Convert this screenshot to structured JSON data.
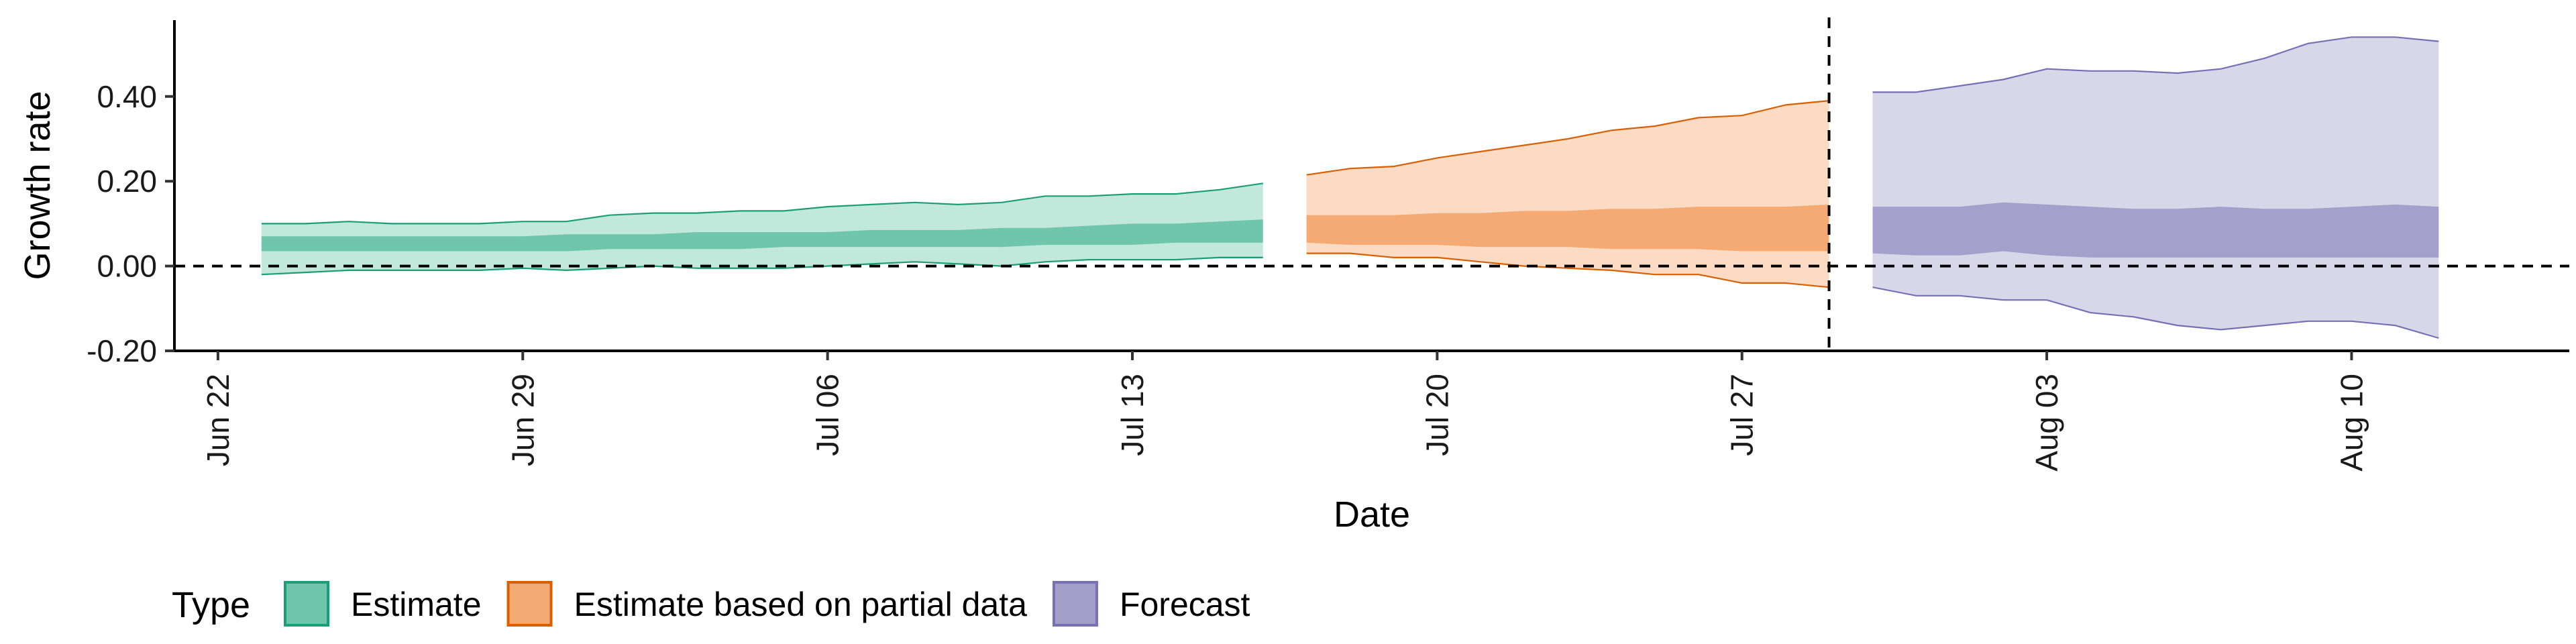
{
  "chart_data": {
    "type": "area",
    "xlabel": "Date",
    "ylabel": "Growth rate",
    "ylim": [
      -0.2,
      0.58
    ],
    "y_ticks": [
      -0.2,
      0.0,
      0.2,
      0.4
    ],
    "y_tick_labels": [
      "-0.20",
      "0.00",
      "0.20",
      "0.40"
    ],
    "x_range": [
      "2020-06-21",
      "2020-08-15"
    ],
    "x_ticks": [
      "2020-06-22",
      "2020-06-29",
      "2020-07-06",
      "2020-07-13",
      "2020-07-20",
      "2020-07-27",
      "2020-08-03",
      "2020-08-10"
    ],
    "x_tick_labels": [
      "Jun 22",
      "Jun 29",
      "Jul 06",
      "Jul 13",
      "Jul 20",
      "Jul 27",
      "Aug 03",
      "Aug 10"
    ],
    "hlines": [
      {
        "y": 0,
        "style": "dashed"
      }
    ],
    "vlines": [
      {
        "x": "2020-07-29",
        "style": "dashed"
      }
    ],
    "legend": {
      "title": "Type",
      "position": "bottom-left"
    },
    "series": [
      {
        "name": "Estimate",
        "color": "#66c2a5",
        "stroke": "#1b9e77",
        "x": [
          "2020-06-23",
          "2020-06-24",
          "2020-06-25",
          "2020-06-26",
          "2020-06-27",
          "2020-06-28",
          "2020-06-29",
          "2020-06-30",
          "2020-07-01",
          "2020-07-02",
          "2020-07-03",
          "2020-07-04",
          "2020-07-05",
          "2020-07-06",
          "2020-07-07",
          "2020-07-08",
          "2020-07-09",
          "2020-07-10",
          "2020-07-11",
          "2020-07-12",
          "2020-07-13",
          "2020-07-14",
          "2020-07-15",
          "2020-07-16"
        ],
        "upper_90": [
          0.1,
          0.1,
          0.105,
          0.1,
          0.1,
          0.1,
          0.105,
          0.105,
          0.12,
          0.125,
          0.125,
          0.13,
          0.13,
          0.14,
          0.145,
          0.15,
          0.145,
          0.15,
          0.165,
          0.165,
          0.17,
          0.17,
          0.18,
          0.195
        ],
        "upper_50": [
          0.07,
          0.07,
          0.07,
          0.07,
          0.07,
          0.07,
          0.07,
          0.075,
          0.075,
          0.075,
          0.08,
          0.08,
          0.08,
          0.08,
          0.085,
          0.085,
          0.085,
          0.09,
          0.09,
          0.095,
          0.1,
          0.1,
          0.105,
          0.11
        ],
        "lower_50": [
          0.035,
          0.035,
          0.035,
          0.035,
          0.035,
          0.035,
          0.035,
          0.035,
          0.04,
          0.04,
          0.04,
          0.04,
          0.045,
          0.045,
          0.045,
          0.045,
          0.045,
          0.045,
          0.05,
          0.05,
          0.05,
          0.055,
          0.055,
          0.055
        ],
        "lower_90": [
          -0.02,
          -0.015,
          -0.01,
          -0.01,
          -0.01,
          -0.01,
          -0.005,
          -0.01,
          -0.005,
          0.0,
          -0.005,
          -0.005,
          -0.005,
          0.0,
          0.005,
          0.01,
          0.005,
          0.0,
          0.01,
          0.015,
          0.015,
          0.015,
          0.02,
          0.02
        ]
      },
      {
        "name": "Estimate based on partial data",
        "color": "#f4a46a",
        "stroke": "#d95f02",
        "x": [
          "2020-07-17",
          "2020-07-18",
          "2020-07-19",
          "2020-07-20",
          "2020-07-21",
          "2020-07-22",
          "2020-07-23",
          "2020-07-24",
          "2020-07-25",
          "2020-07-26",
          "2020-07-27",
          "2020-07-28",
          "2020-07-29"
        ],
        "upper_90": [
          0.215,
          0.23,
          0.235,
          0.255,
          0.27,
          0.285,
          0.3,
          0.32,
          0.33,
          0.35,
          0.355,
          0.38,
          0.39
        ],
        "upper_50": [
          0.12,
          0.12,
          0.12,
          0.125,
          0.125,
          0.13,
          0.13,
          0.135,
          0.135,
          0.14,
          0.14,
          0.14,
          0.145
        ],
        "lower_50": [
          0.055,
          0.05,
          0.05,
          0.05,
          0.045,
          0.045,
          0.045,
          0.04,
          0.04,
          0.04,
          0.035,
          0.035,
          0.035
        ],
        "lower_90": [
          0.03,
          0.03,
          0.02,
          0.02,
          0.01,
          0.0,
          -0.005,
          -0.01,
          -0.02,
          -0.02,
          -0.04,
          -0.04,
          -0.05
        ]
      },
      {
        "name": "Forecast",
        "color": "#9e9ac8",
        "stroke": "#7570b3",
        "x": [
          "2020-07-30",
          "2020-07-31",
          "2020-08-01",
          "2020-08-02",
          "2020-08-03",
          "2020-08-04",
          "2020-08-05",
          "2020-08-06",
          "2020-08-07",
          "2020-08-08",
          "2020-08-09",
          "2020-08-10",
          "2020-08-11",
          "2020-08-12"
        ],
        "upper_90": [
          0.41,
          0.41,
          0.425,
          0.44,
          0.465,
          0.46,
          0.46,
          0.455,
          0.465,
          0.49,
          0.525,
          0.54,
          0.54,
          0.53
        ],
        "upper_50": [
          0.14,
          0.14,
          0.14,
          0.15,
          0.145,
          0.14,
          0.135,
          0.135,
          0.14,
          0.135,
          0.135,
          0.14,
          0.145,
          0.14
        ],
        "lower_50": [
          0.03,
          0.025,
          0.025,
          0.035,
          0.025,
          0.02,
          0.02,
          0.02,
          0.02,
          0.02,
          0.02,
          0.02,
          0.02,
          0.02
        ],
        "lower_90": [
          -0.05,
          -0.07,
          -0.07,
          -0.08,
          -0.08,
          -0.11,
          -0.12,
          -0.14,
          -0.15,
          -0.14,
          -0.13,
          -0.13,
          -0.14,
          -0.17
        ]
      }
    ]
  }
}
